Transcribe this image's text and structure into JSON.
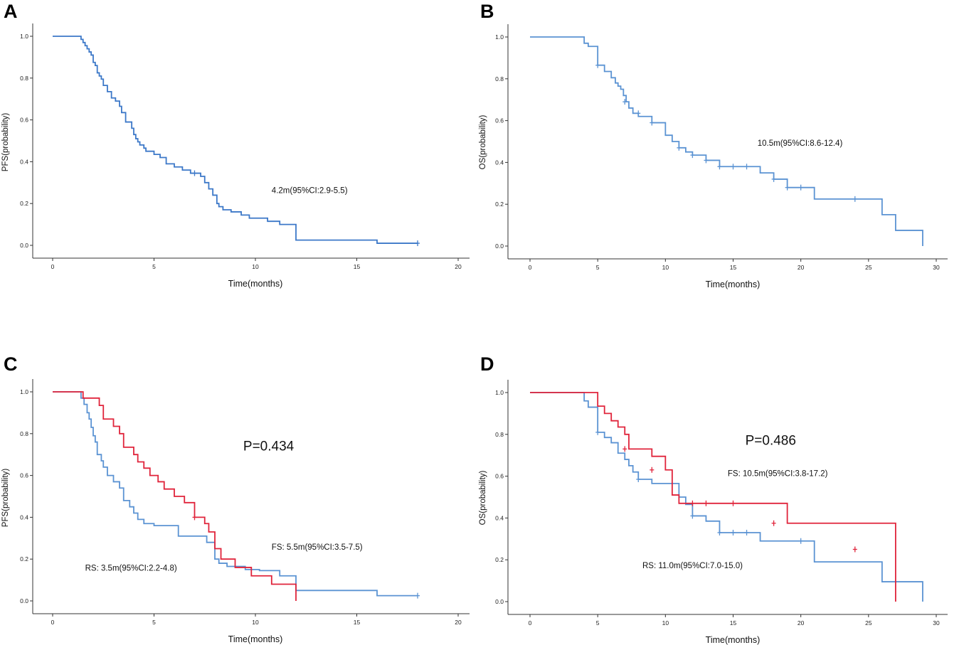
{
  "chart_data": [
    {
      "id": "A",
      "panel_label": "A",
      "type": "line",
      "title": "",
      "xlabel": "Time(months)",
      "ylabel": "PFS(probability)",
      "xlim": [
        0,
        20
      ],
      "ylim": [
        0,
        1
      ],
      "xticks": [
        "0",
        "5",
        "10",
        "15",
        "20"
      ],
      "yticks": [
        "0.0",
        "0.2",
        "0.4",
        "0.6",
        "0.8",
        "1.0"
      ],
      "p_value": "",
      "series": [
        {
          "name": "PFS",
          "color": "#3c78c8",
          "step_x": [
            0,
            1.4,
            1.5,
            1.6,
            1.7,
            1.8,
            1.9,
            2.0,
            2.1,
            2.2,
            2.3,
            2.4,
            2.5,
            2.7,
            2.9,
            3.1,
            3.3,
            3.4,
            3.6,
            3.9,
            4.0,
            4.1,
            4.2,
            4.3,
            4.5,
            4.6,
            5.0,
            5.3,
            5.6,
            6.0,
            6.4,
            6.8,
            7.3,
            7.5,
            7.7,
            7.9,
            8.1,
            8.2,
            8.4,
            8.8,
            9.3,
            9.7,
            10.6,
            11.2,
            12.0,
            16.0,
            18.0
          ],
          "step_y": [
            1.0,
            0.985,
            0.97,
            0.955,
            0.94,
            0.925,
            0.91,
            0.875,
            0.86,
            0.825,
            0.81,
            0.795,
            0.765,
            0.735,
            0.705,
            0.69,
            0.665,
            0.635,
            0.59,
            0.56,
            0.53,
            0.51,
            0.495,
            0.48,
            0.465,
            0.45,
            0.435,
            0.42,
            0.39,
            0.375,
            0.36,
            0.345,
            0.33,
            0.3,
            0.27,
            0.24,
            0.2,
            0.185,
            0.17,
            0.16,
            0.145,
            0.13,
            0.115,
            0.1,
            0.025,
            0.01,
            0.01
          ],
          "censor_x": [
            7.0,
            18.0
          ],
          "censor_y": [
            0.345,
            0.01
          ]
        }
      ],
      "annotations": [
        {
          "text": "4.2m(95%CI:2.9-5.5)",
          "x": 10.8,
          "y": 0.25,
          "kind": "anno"
        }
      ]
    },
    {
      "id": "B",
      "panel_label": "B",
      "type": "line",
      "title": "",
      "xlabel": "Time(months)",
      "ylabel": "OS(probability)",
      "xlim": [
        0,
        30
      ],
      "ylim": [
        0,
        1
      ],
      "xticks": [
        "0",
        "5",
        "10",
        "15",
        "20",
        "25",
        "30"
      ],
      "yticks": [
        "0.0",
        "0.2",
        "0.4",
        "0.6",
        "0.8",
        "1.0"
      ],
      "p_value": "",
      "series": [
        {
          "name": "OS",
          "color": "#5b93d3",
          "step_x": [
            0,
            4.0,
            4.3,
            5.0,
            5.5,
            6.0,
            6.3,
            6.5,
            6.7,
            6.9,
            7.1,
            7.3,
            7.6,
            8.0,
            9.0,
            10.0,
            10.5,
            11.0,
            11.5,
            12.0,
            13.0,
            14.0,
            17.0,
            18.0,
            19.0,
            21.0,
            26.0,
            27.0,
            29.0
          ],
          "step_y": [
            1.0,
            0.97,
            0.955,
            0.865,
            0.835,
            0.805,
            0.78,
            0.765,
            0.75,
            0.72,
            0.69,
            0.66,
            0.635,
            0.62,
            0.59,
            0.53,
            0.5,
            0.47,
            0.45,
            0.435,
            0.41,
            0.38,
            0.35,
            0.32,
            0.28,
            0.225,
            0.15,
            0.075,
            0.0
          ],
          "censor_x": [
            5.0,
            7.0,
            8.0,
            9.0,
            11.0,
            12.0,
            13.0,
            14.0,
            15.0,
            16.0,
            18.0,
            19.0,
            20.0,
            24.0
          ],
          "censor_y": [
            0.865,
            0.69,
            0.635,
            0.59,
            0.47,
            0.435,
            0.41,
            0.38,
            0.38,
            0.38,
            0.32,
            0.28,
            0.28,
            0.225
          ]
        }
      ],
      "annotations": [
        {
          "text": "10.5m(95%CI:8.6-12.4)",
          "x": 16.8,
          "y": 0.48,
          "kind": "anno"
        }
      ]
    },
    {
      "id": "C",
      "panel_label": "C",
      "type": "line",
      "title": "",
      "xlabel": "Time(months)",
      "ylabel": "PFS(probability)",
      "xlim": [
        0,
        20
      ],
      "ylim": [
        0,
        1
      ],
      "xticks": [
        "0",
        "5",
        "10",
        "15",
        "20"
      ],
      "yticks": [
        "0.0",
        "0.2",
        "0.4",
        "0.6",
        "0.8",
        "1.0"
      ],
      "p_value": "P=0.434",
      "series": [
        {
          "name": "RS",
          "color": "#5b93d3",
          "step_x": [
            0,
            1.4,
            1.55,
            1.7,
            1.8,
            1.9,
            2.0,
            2.1,
            2.2,
            2.4,
            2.5,
            2.7,
            3.0,
            3.3,
            3.5,
            3.8,
            4.0,
            4.2,
            4.5,
            5.0,
            6.2,
            7.6,
            8.0,
            8.2,
            8.6,
            9.5,
            10.2,
            11.2,
            12.0,
            16.0,
            18.0
          ],
          "step_y": [
            1.0,
            0.97,
            0.94,
            0.9,
            0.87,
            0.83,
            0.79,
            0.76,
            0.7,
            0.67,
            0.64,
            0.6,
            0.57,
            0.54,
            0.48,
            0.45,
            0.42,
            0.39,
            0.37,
            0.36,
            0.31,
            0.28,
            0.2,
            0.18,
            0.165,
            0.15,
            0.145,
            0.12,
            0.05,
            0.025,
            0.025
          ],
          "censor_x": [
            18.0
          ],
          "censor_y": [
            0.025
          ]
        },
        {
          "name": "FS",
          "color": "#e0243b",
          "step_x": [
            0,
            1.5,
            2.3,
            2.5,
            3.0,
            3.3,
            3.5,
            4.0,
            4.2,
            4.5,
            4.8,
            5.2,
            5.5,
            6.0,
            6.5,
            7.0,
            7.5,
            7.7,
            8.0,
            8.3,
            9.0,
            9.8,
            10.8,
            12.0
          ],
          "step_y": [
            1.0,
            0.97,
            0.935,
            0.87,
            0.835,
            0.8,
            0.735,
            0.7,
            0.665,
            0.635,
            0.6,
            0.57,
            0.535,
            0.5,
            0.47,
            0.4,
            0.37,
            0.33,
            0.25,
            0.2,
            0.16,
            0.12,
            0.08,
            0.0
          ],
          "censor_x": [
            7.0
          ],
          "censor_y": [
            0.4
          ]
        }
      ],
      "annotations": [
        {
          "text": "P=0.434",
          "x": 9.4,
          "y": 0.72,
          "kind": "pval"
        },
        {
          "text": "FS:  5.5m(95%CI:3.5-7.5)",
          "x": 10.8,
          "y": 0.245,
          "kind": "anno"
        },
        {
          "text": "RS:  3.5m(95%CI:2.2-4.8)",
          "x": 1.6,
          "y": 0.145,
          "kind": "anno"
        }
      ]
    },
    {
      "id": "D",
      "panel_label": "D",
      "type": "line",
      "title": "",
      "xlabel": "Time(months)",
      "ylabel": "OS(probability)",
      "xlim": [
        0,
        30
      ],
      "ylim": [
        0,
        1
      ],
      "xticks": [
        "0",
        "5",
        "10",
        "15",
        "20",
        "25",
        "30"
      ],
      "yticks": [
        "0.0",
        "0.2",
        "0.4",
        "0.6",
        "0.8",
        "1.0"
      ],
      "p_value": "P=0.486",
      "series": [
        {
          "name": "RS",
          "color": "#5b93d3",
          "step_x": [
            0,
            4.0,
            4.3,
            5.0,
            5.5,
            6.0,
            6.5,
            7.0,
            7.3,
            7.6,
            8.0,
            9.0,
            11.0,
            11.5,
            12.0,
            13.0,
            14.0,
            17.0,
            21.0,
            26.0,
            29.0
          ],
          "step_y": [
            1.0,
            0.96,
            0.93,
            0.81,
            0.785,
            0.76,
            0.71,
            0.68,
            0.65,
            0.62,
            0.585,
            0.565,
            0.5,
            0.465,
            0.41,
            0.385,
            0.33,
            0.29,
            0.19,
            0.095,
            0.0
          ],
          "censor_x": [
            5.0,
            8.0,
            12.0,
            14.0,
            15.0,
            16.0,
            20.0
          ],
          "censor_y": [
            0.81,
            0.585,
            0.41,
            0.33,
            0.33,
            0.33,
            0.29
          ]
        },
        {
          "name": "FS",
          "color": "#e0243b",
          "step_x": [
            0,
            5.0,
            5.5,
            6.0,
            6.5,
            7.0,
            7.3,
            9.0,
            10.0,
            10.5,
            11.0,
            18.0,
            19.0,
            27.0
          ],
          "step_y": [
            1.0,
            0.935,
            0.9,
            0.865,
            0.835,
            0.8,
            0.73,
            0.695,
            0.63,
            0.51,
            0.47,
            0.47,
            0.375,
            0.0
          ],
          "censor_x": [
            7.0,
            9.0,
            12.0,
            13.0,
            15.0,
            18.0,
            24.0
          ],
          "censor_y": [
            0.73,
            0.63,
            0.47,
            0.47,
            0.47,
            0.375,
            0.25
          ]
        }
      ],
      "annotations": [
        {
          "text": "P=0.486",
          "x": 15.9,
          "y": 0.75,
          "kind": "pval"
        },
        {
          "text": "FS:  10.5m(95%CI:3.8-17.2)",
          "x": 14.6,
          "y": 0.6,
          "kind": "anno"
        },
        {
          "text": "RS:  11.0m(95%CI:7.0-15.0)",
          "x": 8.3,
          "y": 0.16,
          "kind": "anno"
        }
      ]
    }
  ]
}
